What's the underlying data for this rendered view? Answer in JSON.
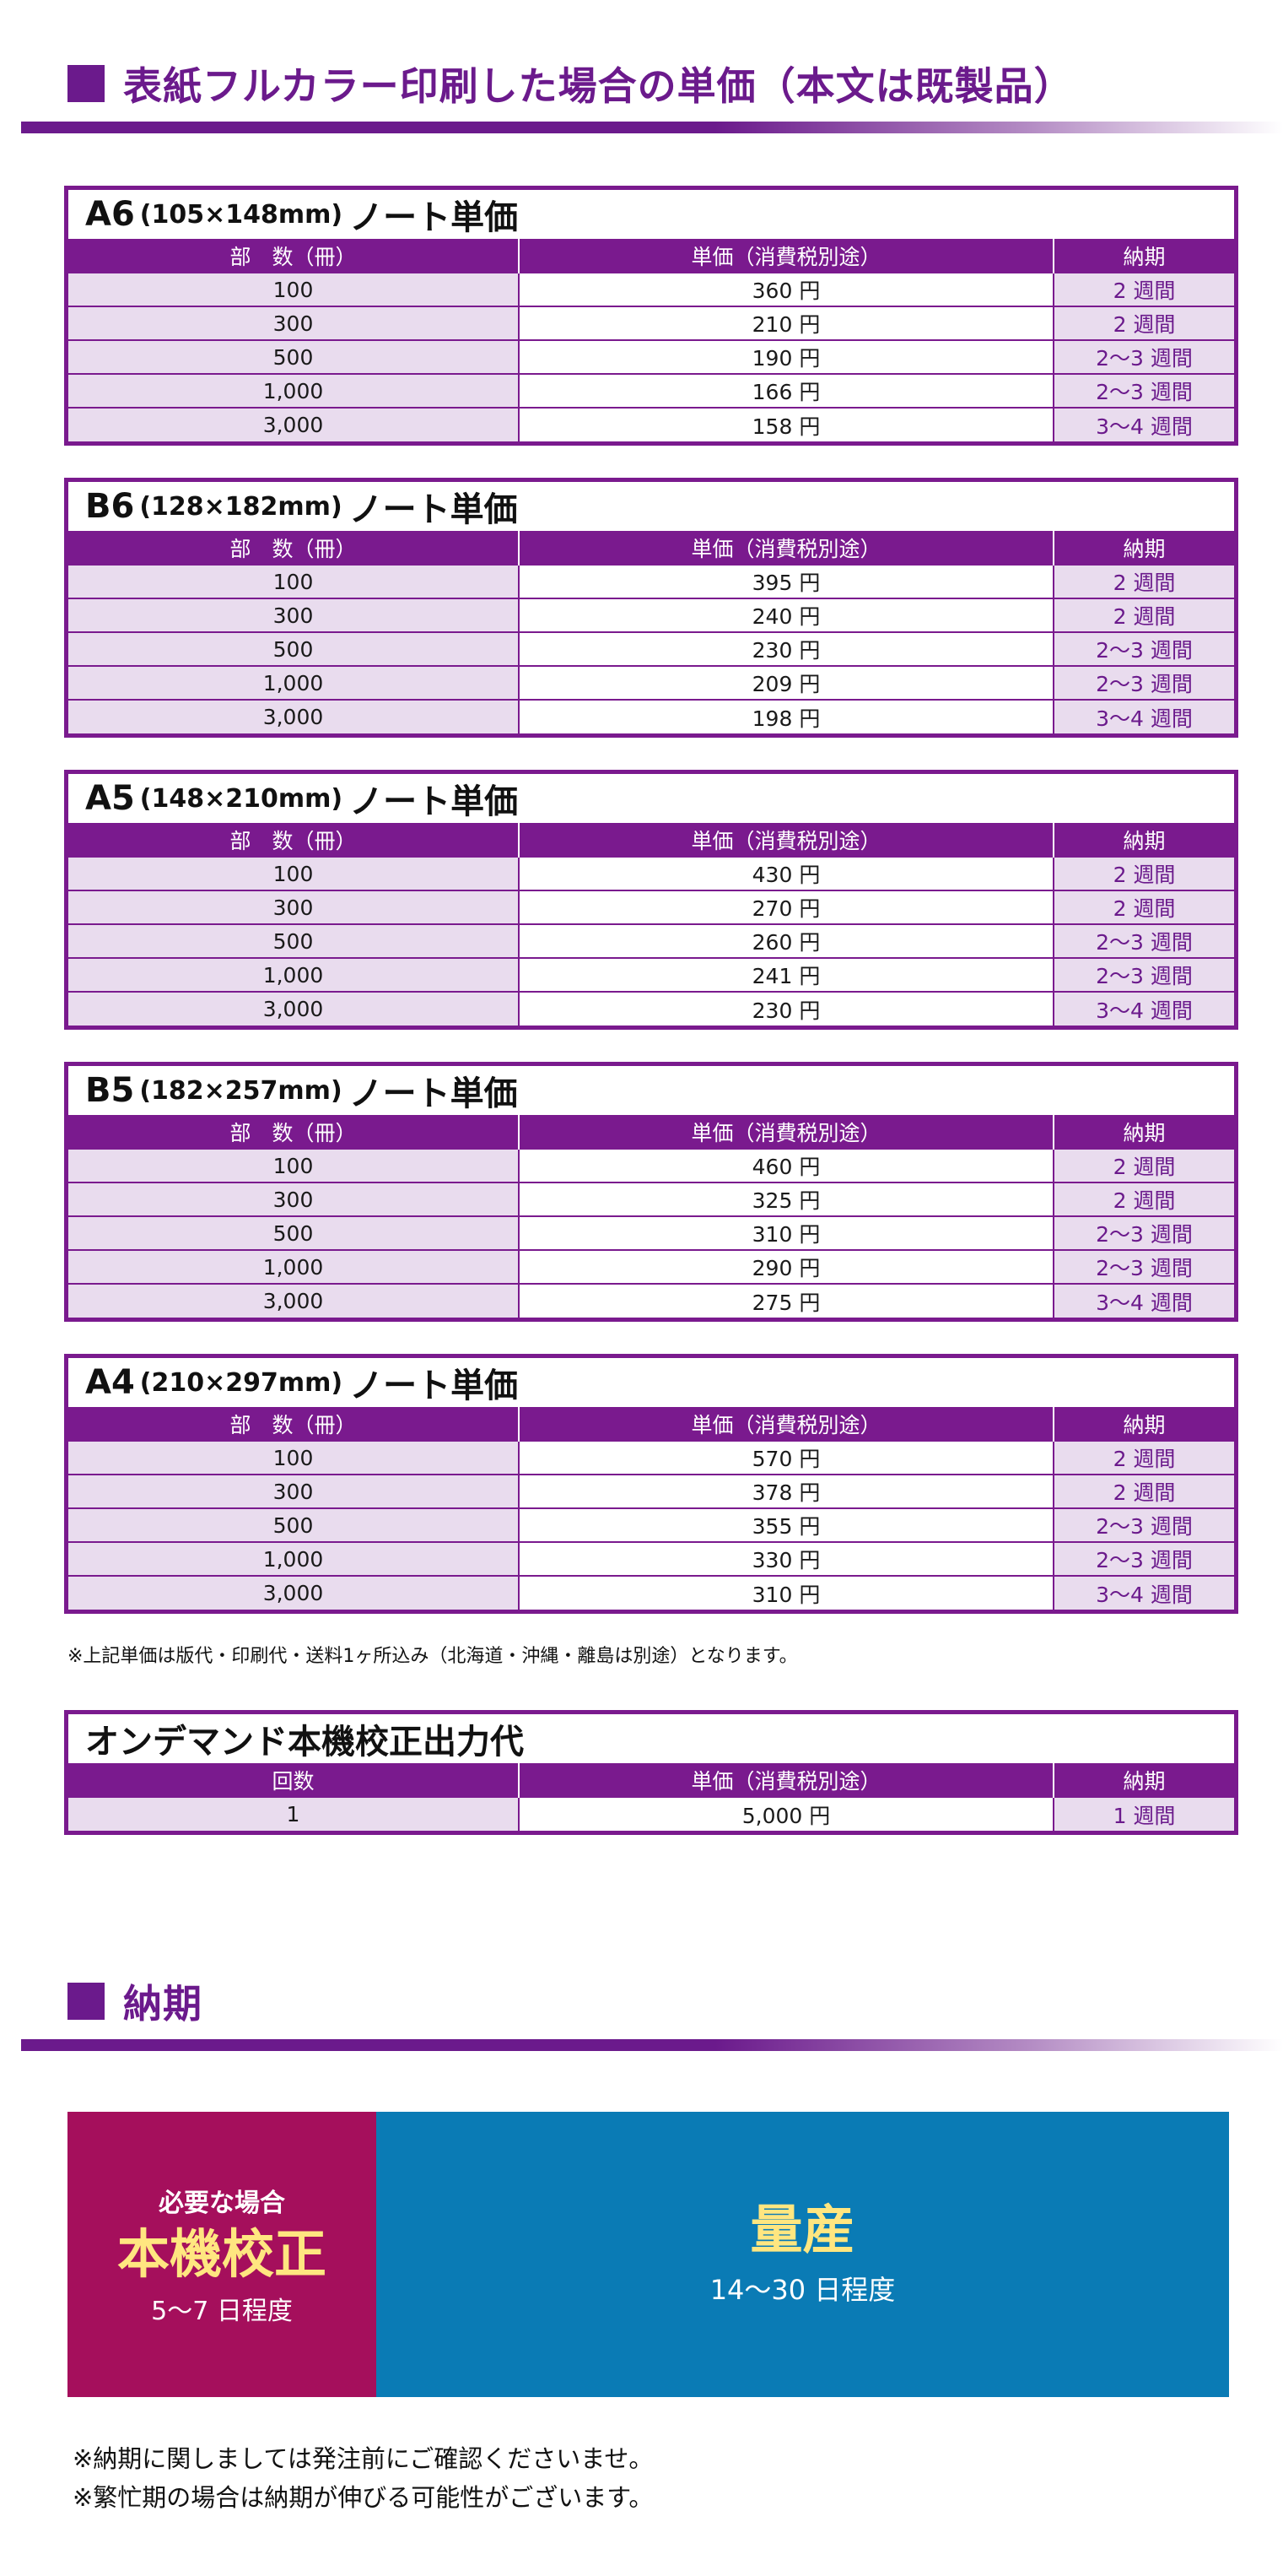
{
  "section1": {
    "title": "表紙フルカラー印刷した場合の単価（本文は既製品）"
  },
  "headers": {
    "qty": "部　数（冊）",
    "price": "単価（消費税別途）",
    "delivery": "納期"
  },
  "tables": [
    {
      "size": "A6",
      "dim": "(105×148mm)",
      "name": "ノート単価",
      "rows": [
        {
          "qty": "100",
          "price": "360 円",
          "delivery": "2 週間"
        },
        {
          "qty": "300",
          "price": "210 円",
          "delivery": "2 週間"
        },
        {
          "qty": "500",
          "price": "190 円",
          "delivery": "2〜3 週間"
        },
        {
          "qty": "1,000",
          "price": "166 円",
          "delivery": "2〜3 週間"
        },
        {
          "qty": "3,000",
          "price": "158 円",
          "delivery": "3〜4 週間"
        }
      ]
    },
    {
      "size": "B6",
      "dim": "(128×182mm)",
      "name": "ノート単価",
      "rows": [
        {
          "qty": "100",
          "price": "395 円",
          "delivery": "2 週間"
        },
        {
          "qty": "300",
          "price": "240 円",
          "delivery": "2 週間"
        },
        {
          "qty": "500",
          "price": "230 円",
          "delivery": "2〜3 週間"
        },
        {
          "qty": "1,000",
          "price": "209 円",
          "delivery": "2〜3 週間"
        },
        {
          "qty": "3,000",
          "price": "198 円",
          "delivery": "3〜4 週間"
        }
      ]
    },
    {
      "size": "A5",
      "dim": "(148×210mm)",
      "name": "ノート単価",
      "rows": [
        {
          "qty": "100",
          "price": "430 円",
          "delivery": "2 週間"
        },
        {
          "qty": "300",
          "price": "270 円",
          "delivery": "2 週間"
        },
        {
          "qty": "500",
          "price": "260 円",
          "delivery": "2〜3 週間"
        },
        {
          "qty": "1,000",
          "price": "241 円",
          "delivery": "2〜3 週間"
        },
        {
          "qty": "3,000",
          "price": "230 円",
          "delivery": "3〜4 週間"
        }
      ]
    },
    {
      "size": "B5",
      "dim": "(182×257mm)",
      "name": "ノート単価",
      "rows": [
        {
          "qty": "100",
          "price": "460 円",
          "delivery": "2 週間"
        },
        {
          "qty": "300",
          "price": "325 円",
          "delivery": "2 週間"
        },
        {
          "qty": "500",
          "price": "310 円",
          "delivery": "2〜3 週間"
        },
        {
          "qty": "1,000",
          "price": "290 円",
          "delivery": "2〜3 週間"
        },
        {
          "qty": "3,000",
          "price": "275 円",
          "delivery": "3〜4 週間"
        }
      ]
    },
    {
      "size": "A4",
      "dim": "(210×297mm)",
      "name": "ノート単価",
      "rows": [
        {
          "qty": "100",
          "price": "570 円",
          "delivery": "2 週間"
        },
        {
          "qty": "300",
          "price": "378 円",
          "delivery": "2 週間"
        },
        {
          "qty": "500",
          "price": "355 円",
          "delivery": "2〜3 週間"
        },
        {
          "qty": "1,000",
          "price": "330 円",
          "delivery": "2〜3 週間"
        },
        {
          "qty": "3,000",
          "price": "310 円",
          "delivery": "3〜4 週間"
        }
      ]
    }
  ],
  "price_note": "※上記単価は版代・印刷代・送料1ヶ所込み（北海道・沖縄・離島は別途）となります。",
  "proof": {
    "title": "オンデマンド本機校正出力代",
    "headers": {
      "qty": "回数",
      "price": "単価（消費税別途）",
      "delivery": "納期"
    },
    "rows": [
      {
        "qty": "1",
        "price": "5,000 円",
        "delivery": "1 週間"
      }
    ]
  },
  "section2": {
    "title": "納期"
  },
  "delivery_panel": {
    "left": {
      "line1": "必要な場合",
      "line2": "本機校正",
      "line3": "5〜7 日程度",
      "bg": "#a50f5c"
    },
    "right": {
      "line1": "量産",
      "line2": "14〜30 日程度",
      "bg": "#0a7bb5"
    }
  },
  "notes": [
    "※納期に関しましては発注前にご確認くださいませ。",
    "※繁忙期の場合は納期が伸びる可能性がございます。"
  ],
  "colors": {
    "accent": "#7a1a8e",
    "cell_tint": "#e9dcee",
    "highlight_text": "#ffe680"
  }
}
